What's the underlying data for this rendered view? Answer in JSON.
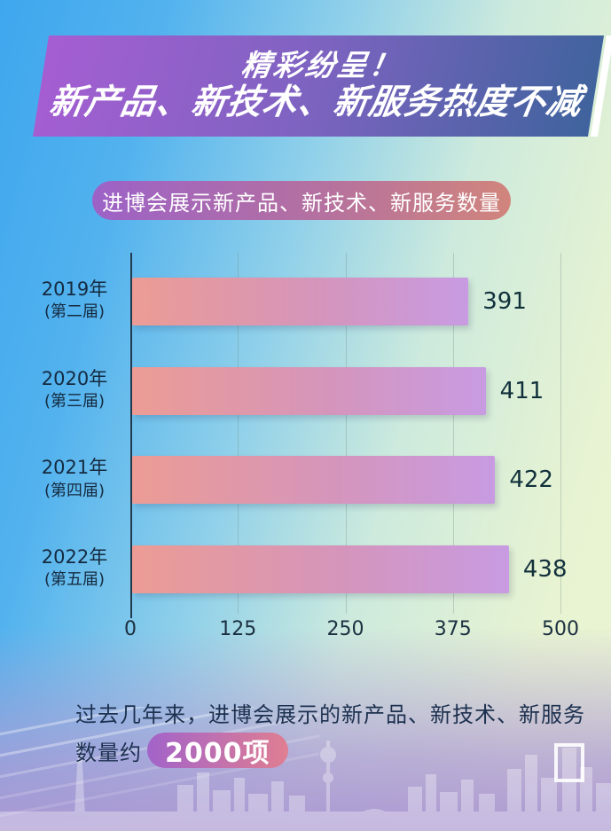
{
  "title_banner": {
    "line1": "精彩纷呈！",
    "line2": "新产品、新技术、新服务热度不减"
  },
  "subtitle_pill": "进博会展示新产品、新技术、新服务数量",
  "chart_data": {
    "type": "bar",
    "orientation": "horizontal",
    "title": "进博会展示新产品、新技术、新服务数量",
    "categories": [
      "2019年 (第二届)",
      "2020年 (第三届)",
      "2021年 (第四届)",
      "2022年 (第五届)"
    ],
    "rows": [
      {
        "year": "2019年",
        "session": "(第二届)",
        "value": 391
      },
      {
        "year": "2020年",
        "session": "(第三届)",
        "value": 411
      },
      {
        "year": "2021年",
        "session": "(第四届)",
        "value": 422
      },
      {
        "year": "2022年",
        "session": "(第五届)",
        "value": 438
      }
    ],
    "values": [
      391,
      411,
      422,
      438
    ],
    "x_ticks": [
      0,
      125,
      250,
      375,
      500
    ],
    "xlim": [
      0,
      500
    ],
    "grid": true,
    "legend": "none"
  },
  "footer": {
    "line1": "过去几年来，进博会展示的新产品、新技术、新服务",
    "line2_prefix": "数量约",
    "highlight": "2000项"
  },
  "colors": {
    "background_blue": "#3fa7ee",
    "background_green": "#eaf5d2",
    "background_lavender": "#ab98d2",
    "banner_gradient_left": "#a55ed2",
    "banner_gradient_right": "#3f639d",
    "subtitle_gradient_left": "#9c62c7",
    "subtitle_gradient_right": "#d1857c",
    "bar_gradient_left": "#ec9c94",
    "bar_gradient_right": "#c89be2",
    "count_pill_left": "#a263c9",
    "count_pill_right": "#e07e92",
    "axis_color": "#233a4e",
    "text_dark": "#152a40"
  }
}
